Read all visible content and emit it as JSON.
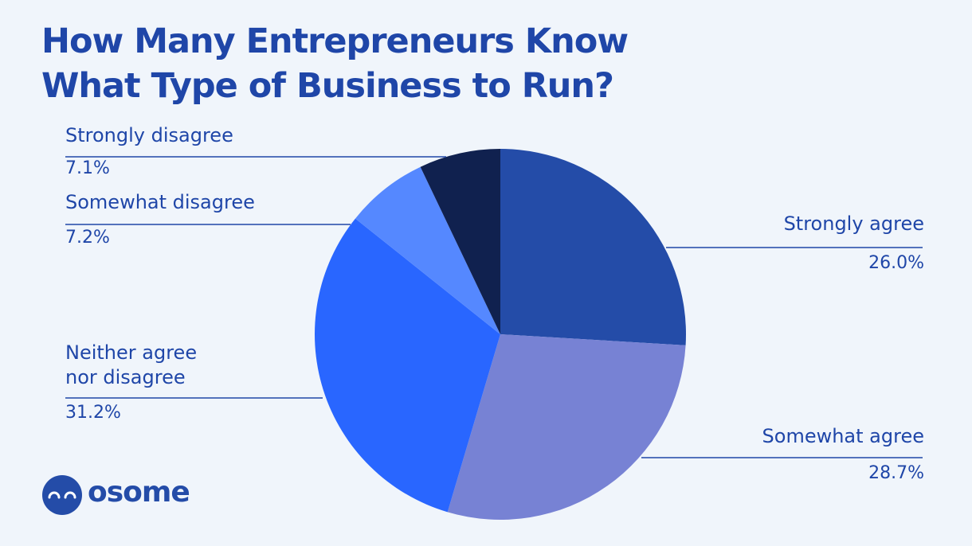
{
  "chart_data": {
    "type": "pie",
    "title": "How Many Entrepreneurs Know What Type of Business to Run?",
    "categories": [
      "Strongly agree",
      "Somewhat agree",
      "Neither agree nor disagree",
      "Somewhat disagree",
      "Strongly disagree"
    ],
    "values": [
      26.0,
      28.7,
      31.2,
      7.2,
      7.1
    ],
    "value_labels": [
      "26.0%",
      "28.7%",
      "31.2%",
      "7.2%",
      "7.1%"
    ],
    "colors": [
      "#244ca8",
      "#7782d4",
      "#2966ff",
      "#5588ff",
      "#10214f"
    ]
  },
  "logo": "osome"
}
